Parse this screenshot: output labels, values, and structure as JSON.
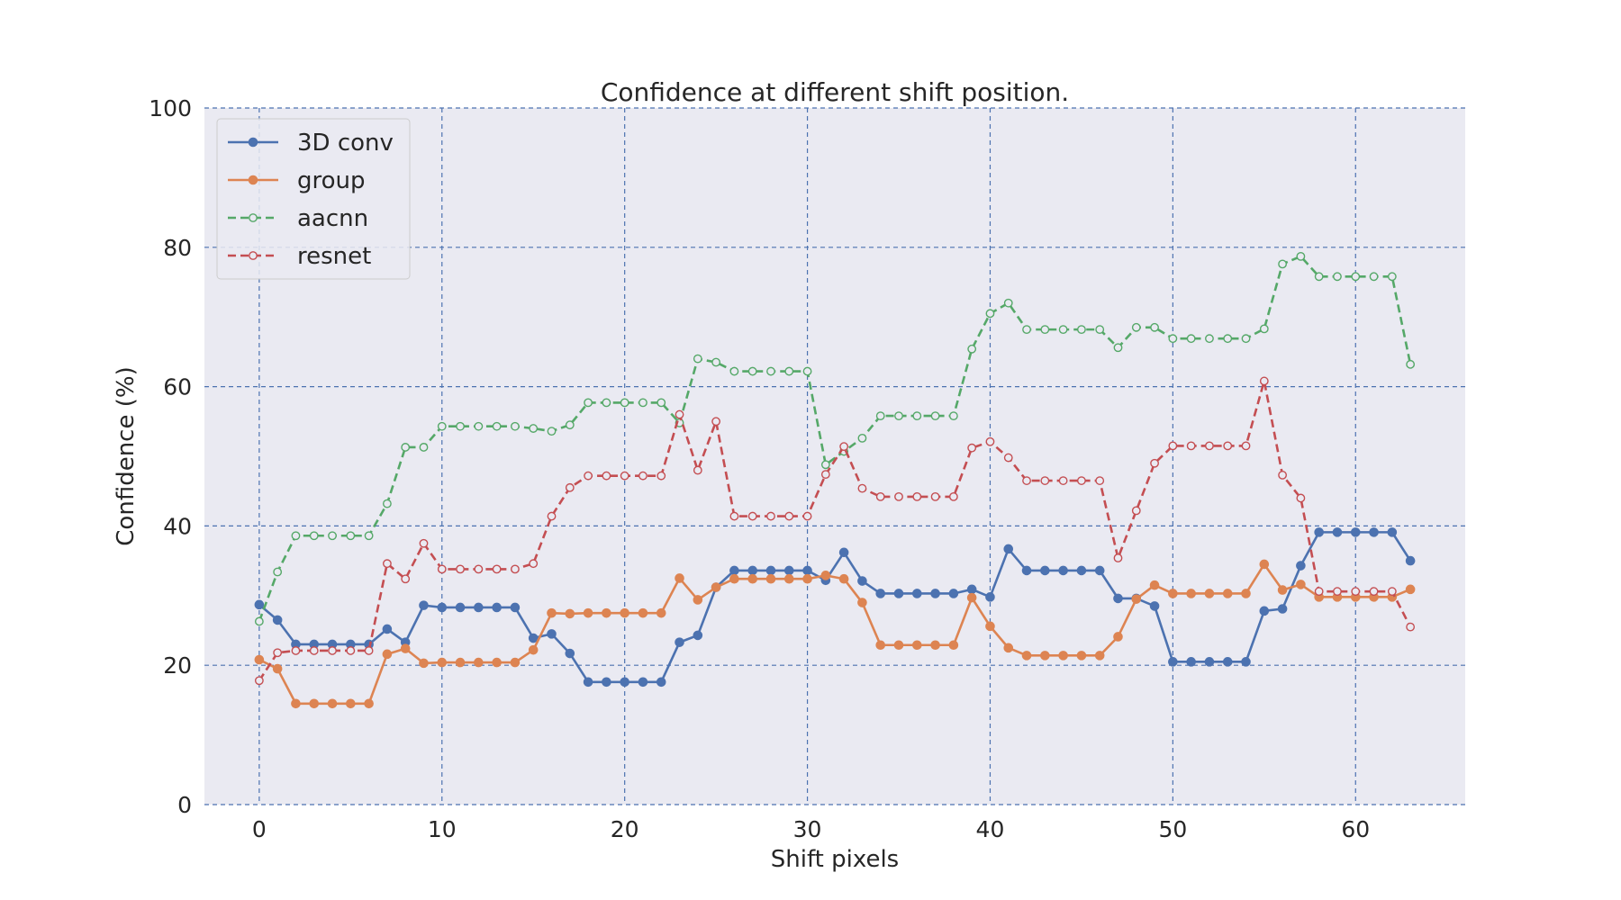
{
  "chart_data": {
    "type": "line",
    "title": "Confidence at different shift position.",
    "xlabel": "Shift pixels",
    "ylabel": "Confidence (%)",
    "xlim": [
      -3,
      66
    ],
    "ylim": [
      0,
      100
    ],
    "xticks": [
      0,
      10,
      20,
      30,
      40,
      50,
      60
    ],
    "yticks": [
      0,
      20,
      40,
      60,
      80,
      100
    ],
    "grid": true,
    "legend_position": "top-left",
    "background_color": "#eaeaf2",
    "grid_color": "#4c72b0",
    "x": [
      0,
      1,
      2,
      3,
      4,
      5,
      6,
      7,
      8,
      9,
      10,
      11,
      12,
      13,
      14,
      15,
      16,
      17,
      18,
      19,
      20,
      21,
      22,
      23,
      24,
      25,
      26,
      27,
      28,
      29,
      30,
      31,
      32,
      33,
      34,
      35,
      36,
      37,
      38,
      39,
      40,
      41,
      42,
      43,
      44,
      45,
      46,
      47,
      48,
      49,
      50,
      51,
      52,
      53,
      54,
      55,
      56,
      57,
      58,
      59,
      60,
      61,
      62,
      63
    ],
    "series": [
      {
        "name": "3D conv",
        "color": "#4c72b0",
        "linestyle": "solid",
        "marker": "filled-circle",
        "values": [
          28.7,
          26.5,
          23.0,
          23.0,
          23.0,
          23.0,
          23.0,
          25.2,
          23.3,
          28.6,
          28.3,
          28.3,
          28.3,
          28.3,
          28.3,
          23.9,
          24.5,
          21.7,
          17.6,
          17.6,
          17.6,
          17.6,
          17.6,
          23.3,
          24.3,
          31.2,
          33.6,
          33.6,
          33.6,
          33.6,
          33.6,
          32.2,
          36.2,
          32.1,
          30.3,
          30.3,
          30.3,
          30.3,
          30.3,
          30.9,
          29.8,
          36.7,
          33.6,
          33.6,
          33.6,
          33.6,
          33.6,
          29.6,
          29.6,
          28.5,
          20.5,
          20.5,
          20.5,
          20.5,
          20.5,
          27.8,
          28.1,
          34.3,
          39.1,
          39.1,
          39.1,
          39.1,
          39.1,
          35.0
        ]
      },
      {
        "name": "group",
        "color": "#dd8452",
        "linestyle": "solid",
        "marker": "filled-circle",
        "values": [
          20.8,
          19.5,
          14.5,
          14.5,
          14.5,
          14.5,
          14.5,
          21.6,
          22.4,
          20.3,
          20.4,
          20.4,
          20.4,
          20.4,
          20.4,
          22.2,
          27.5,
          27.4,
          27.5,
          27.5,
          27.5,
          27.5,
          27.5,
          32.5,
          29.4,
          31.2,
          32.4,
          32.4,
          32.4,
          32.4,
          32.4,
          32.9,
          32.4,
          29.0,
          22.9,
          22.9,
          22.9,
          22.9,
          22.9,
          29.7,
          25.6,
          22.5,
          21.4,
          21.4,
          21.4,
          21.4,
          21.4,
          24.1,
          29.5,
          31.5,
          30.3,
          30.3,
          30.3,
          30.3,
          30.3,
          34.5,
          30.8,
          31.6,
          29.8,
          29.8,
          29.8,
          29.8,
          29.8,
          30.9
        ]
      },
      {
        "name": "aacnn",
        "color": "#55a868",
        "linestyle": "dashed",
        "marker": "open-circle",
        "values": [
          26.3,
          33.4,
          38.6,
          38.6,
          38.6,
          38.6,
          38.6,
          43.2,
          51.3,
          51.3,
          54.3,
          54.3,
          54.3,
          54.3,
          54.3,
          54.0,
          53.6,
          54.5,
          57.7,
          57.7,
          57.7,
          57.7,
          57.7,
          54.8,
          64.0,
          63.5,
          62.2,
          62.2,
          62.2,
          62.2,
          62.2,
          48.8,
          50.7,
          52.6,
          55.8,
          55.8,
          55.8,
          55.8,
          55.8,
          65.4,
          70.5,
          72.0,
          68.2,
          68.2,
          68.2,
          68.2,
          68.2,
          65.6,
          68.5,
          68.5,
          66.9,
          66.9,
          66.9,
          66.9,
          66.9,
          68.3,
          77.6,
          78.7,
          75.8,
          75.8,
          75.8,
          75.8,
          75.8,
          63.2
        ]
      },
      {
        "name": "resnet",
        "color": "#c44e52",
        "linestyle": "dashed",
        "marker": "open-circle",
        "values": [
          17.8,
          21.8,
          22.1,
          22.1,
          22.1,
          22.1,
          22.1,
          34.6,
          32.4,
          37.5,
          33.8,
          33.8,
          33.8,
          33.8,
          33.8,
          34.6,
          41.4,
          45.5,
          47.2,
          47.2,
          47.2,
          47.2,
          47.2,
          56.0,
          48.0,
          55.0,
          41.4,
          41.4,
          41.4,
          41.4,
          41.4,
          47.4,
          51.4,
          45.4,
          44.2,
          44.2,
          44.2,
          44.2,
          44.2,
          51.2,
          52.1,
          49.8,
          46.5,
          46.5,
          46.5,
          46.5,
          46.5,
          35.4,
          42.2,
          49.0,
          51.5,
          51.5,
          51.5,
          51.5,
          51.5,
          60.8,
          47.3,
          44.0,
          30.6,
          30.6,
          30.6,
          30.6,
          30.6,
          25.5
        ]
      }
    ]
  }
}
